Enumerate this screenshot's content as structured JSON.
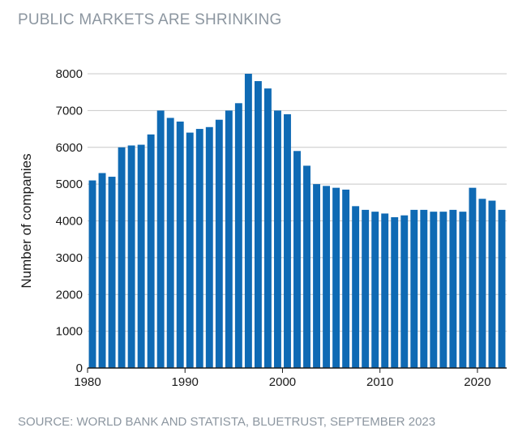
{
  "title": "PUBLIC MARKETS ARE SHRINKING",
  "source": "SOURCE: WORLD BANK AND STATISTA, BLUETRUST, SEPTEMBER 2023",
  "colors": {
    "bar": "#0f6ab4",
    "grid": "#c8c8c8",
    "axis": "#1a1a1a",
    "muted": "#8c96a0"
  },
  "chart_data": {
    "type": "bar",
    "title": "PUBLIC MARKETS ARE SHRINKING",
    "xlabel": "",
    "ylabel": "Number of companies",
    "ylim": [
      0,
      8000
    ],
    "yticks": [
      0,
      1000,
      2000,
      3000,
      4000,
      5000,
      6000,
      7000,
      8000
    ],
    "xticks": [
      1980,
      1990,
      2000,
      2010,
      2020
    ],
    "grid": true,
    "x": [
      1980,
      1981,
      1982,
      1983,
      1984,
      1985,
      1986,
      1987,
      1988,
      1989,
      1990,
      1991,
      1992,
      1993,
      1994,
      1995,
      1996,
      1997,
      1998,
      1999,
      2000,
      2001,
      2002,
      2003,
      2004,
      2005,
      2006,
      2007,
      2008,
      2009,
      2010,
      2011,
      2012,
      2013,
      2014,
      2015,
      2016,
      2017,
      2018,
      2019,
      2020,
      2021,
      2022
    ],
    "values": [
      5100,
      5300,
      5200,
      6000,
      6050,
      6070,
      6350,
      7000,
      6800,
      6700,
      6400,
      6500,
      6550,
      6750,
      7000,
      7200,
      8000,
      7800,
      7600,
      7000,
      6900,
      5900,
      5500,
      5000,
      4950,
      4900,
      4850,
      4400,
      4300,
      4250,
      4200,
      4100,
      4150,
      4300,
      4300,
      4250,
      4250,
      4300,
      4250,
      4900,
      4600,
      4550,
      4300
    ]
  }
}
